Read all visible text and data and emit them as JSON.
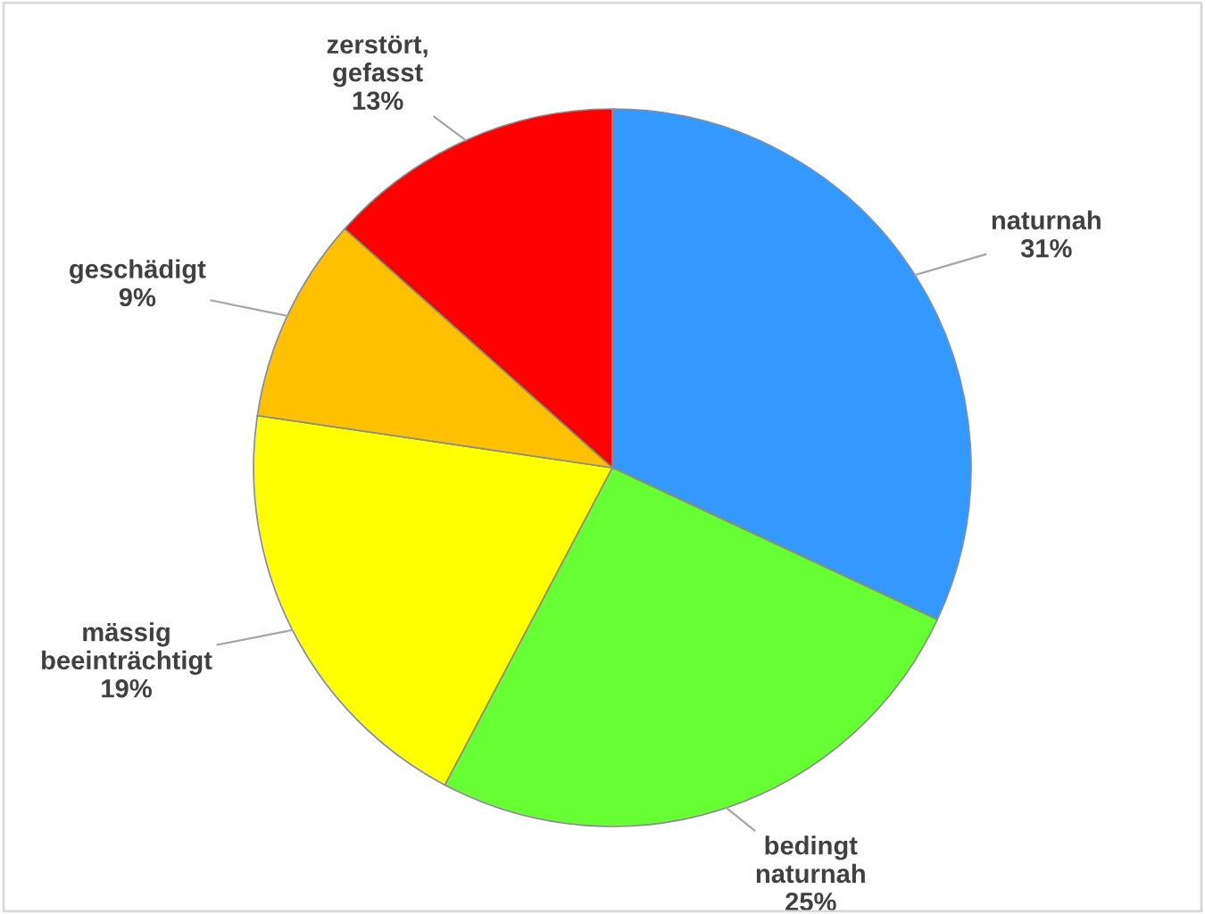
{
  "chart_data": {
    "type": "pie",
    "categories": [
      "naturnah",
      "bedingt naturnah",
      "mässig beeinträchtigt",
      "geschädigt",
      "zerstört, gefasst"
    ],
    "values": [
      31,
      25,
      19,
      9,
      13
    ],
    "value_labels": [
      "31%",
      "25%",
      "19%",
      "9%",
      "13%"
    ],
    "colors": [
      "#3399ff",
      "#66ff33",
      "#ffff00",
      "#ffc000",
      "#ff0000"
    ],
    "legend": false
  }
}
